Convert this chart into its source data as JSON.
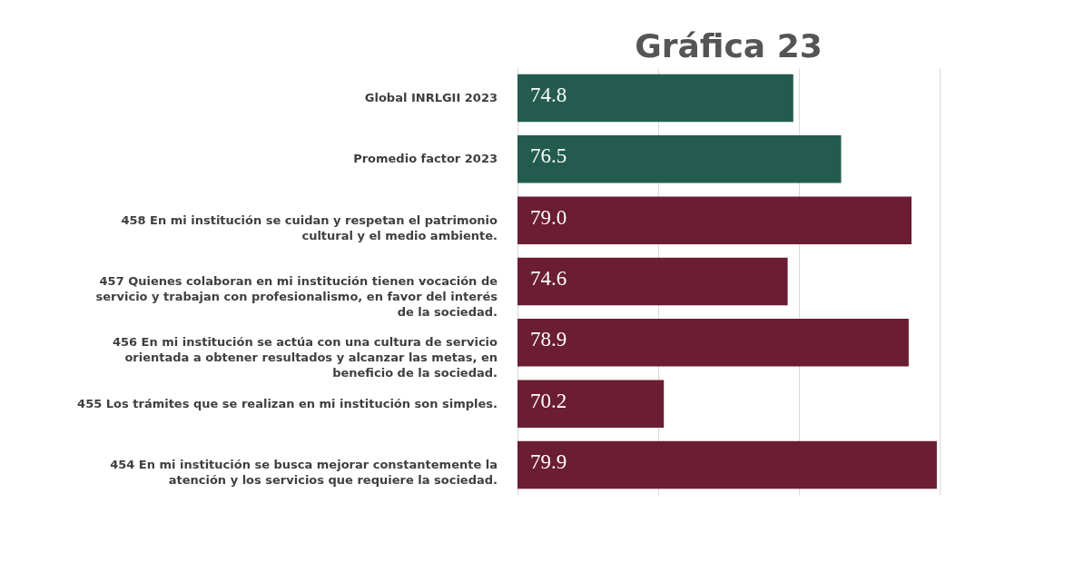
{
  "chart_data": {
    "type": "bar",
    "orientation": "horizontal",
    "title": "Gráfica 23",
    "categories": [
      "Global INRLGII 2023",
      "Promedio factor 2023",
      "458 En mi institución se cuidan y respetan el patrimonio cultural y el medio ambiente.",
      "457 Quienes colaboran en mi institución tienen vocación de servicio y trabajan con profesionalismo, en favor del interés de la sociedad.",
      "456 En mi institución se actúa con una cultura de servicio orientada a obtener resultados y alcanzar las metas, en beneficio de la sociedad.",
      "455 Los trámites que se realizan en mi institución son simples.",
      "454 En mi institución se busca mejorar constantemente la atención y los servicios que requiere la sociedad."
    ],
    "values": [
      74.8,
      76.5,
      79.0,
      74.6,
      78.9,
      70.2,
      79.9
    ],
    "value_labels": [
      "74.8",
      "76.5",
      "79.0",
      "74.6",
      "78.9",
      "70.2",
      "79.9"
    ],
    "colors": [
      "#235c4e",
      "#235c4e",
      "#6b1d33",
      "#6b1d33",
      "#6b1d33",
      "#6b1d33",
      "#6b1d33"
    ],
    "xlim": [
      65,
      80
    ],
    "xticks": [
      {
        "value": 65,
        "label": null
      },
      {
        "value": 70,
        "label": null
      },
      {
        "value": 75,
        "label": null
      },
      {
        "value": 80,
        "label": null
      }
    ],
    "grid": "x",
    "tick_labels": "y"
  }
}
